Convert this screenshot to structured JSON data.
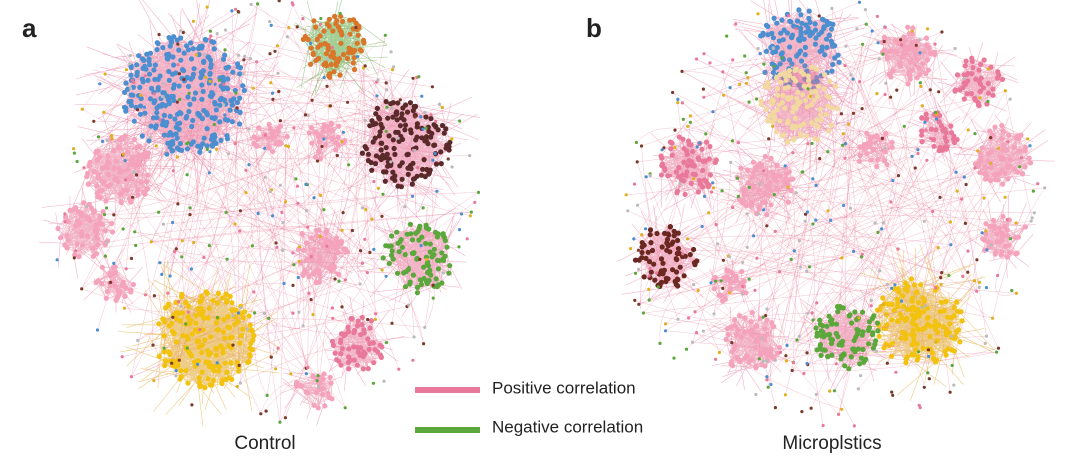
{
  "panels": [
    {
      "label": "a",
      "caption": "Control"
    },
    {
      "label": "b",
      "caption": "Microplstics"
    }
  ],
  "legend": [
    {
      "label": "Positive correlation",
      "color": "#e8799a"
    },
    {
      "label": "Negative correlation",
      "color": "#5aa83c"
    }
  ]
}
